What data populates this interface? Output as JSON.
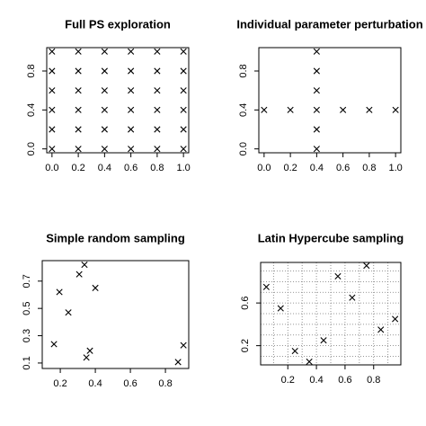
{
  "chart_data": [
    {
      "type": "scatter",
      "title": "Full PS exploration",
      "color": "#000000",
      "x": [
        0,
        0,
        0,
        0,
        0,
        0,
        0.2,
        0.2,
        0.2,
        0.2,
        0.2,
        0.2,
        0.4,
        0.4,
        0.4,
        0.4,
        0.4,
        0.4,
        0.6,
        0.6,
        0.6,
        0.6,
        0.6,
        0.6,
        0.8,
        0.8,
        0.8,
        0.8,
        0.8,
        0.8,
        1,
        1,
        1,
        1,
        1,
        1
      ],
      "values": [
        0,
        0.2,
        0.4,
        0.6,
        0.8,
        1,
        0,
        0.2,
        0.4,
        0.6,
        0.8,
        1,
        0,
        0.2,
        0.4,
        0.6,
        0.8,
        1,
        0,
        0.2,
        0.4,
        0.6,
        0.8,
        1,
        0,
        0.2,
        0.4,
        0.6,
        0.8,
        1,
        0,
        0.2,
        0.4,
        0.6,
        0.8,
        1
      ],
      "xlim": [
        -0.04,
        1.04
      ],
      "ylim": [
        -0.04,
        1.04
      ],
      "xticks": [
        {
          "value": 0,
          "label": "0.0"
        },
        0.2,
        0.4,
        0.6,
        0.8,
        {
          "value": 1,
          "label": "1.0"
        }
      ],
      "yticks": [
        {
          "value": 0,
          "label": "0.0"
        },
        0.4,
        0.8
      ]
    },
    {
      "type": "scatter",
      "title": "Individual parameter perturbation",
      "color": "#000000",
      "x": [
        0.4,
        0.4,
        0.4,
        0.4,
        0.4,
        0.4,
        0,
        0.2,
        0.6,
        0.8,
        1
      ],
      "values": [
        0,
        0.2,
        0.4,
        0.6,
        0.8,
        1,
        0.4,
        0.4,
        0.4,
        0.4,
        0.4
      ],
      "xlim": [
        -0.04,
        1.04
      ],
      "ylim": [
        -0.04,
        1.04
      ],
      "xticks": [
        {
          "value": 0,
          "label": "0.0"
        },
        0.2,
        0.4,
        0.6,
        0.8,
        {
          "value": 1,
          "label": "1.0"
        }
      ],
      "yticks": [
        {
          "value": 0,
          "label": "0.0"
        },
        0.4,
        0.8
      ]
    },
    {
      "type": "scatter",
      "title": "Simple random sampling",
      "color": "#000000",
      "x": [
        0.164,
        0.195,
        0.246,
        0.308,
        0.338,
        0.4,
        0.349,
        0.369,
        0.872,
        0.903
      ],
      "values": [
        0.238,
        0.62,
        0.47,
        0.75,
        0.82,
        0.65,
        0.14,
        0.19,
        0.107,
        0.23
      ],
      "xlim": [
        0.097,
        0.933
      ],
      "ylim": [
        0.06,
        0.85
      ],
      "xticks": [
        0.2,
        0.4,
        0.6,
        0.8
      ],
      "yticks": [
        0.1,
        0.3,
        0.5,
        0.7
      ]
    },
    {
      "type": "scatter",
      "title": "Latin Hypercube sampling",
      "color": "#000000",
      "x": [
        0.05,
        0.15,
        0.25,
        0.35,
        0.45,
        0.55,
        0.65,
        0.75,
        0.85,
        0.95
      ],
      "values": [
        0.75,
        0.55,
        0.15,
        0.05,
        0.25,
        0.85,
        0.65,
        0.95,
        0.35,
        0.45
      ],
      "xlim": [
        0.01,
        0.99
      ],
      "ylim": [
        0.02,
        0.98
      ],
      "xticks": [
        0.2,
        0.4,
        0.6,
        0.8
      ],
      "yticks": [
        0.2,
        0.6
      ],
      "grid": {
        "x": [
          0.1,
          0.2,
          0.3,
          0.4,
          0.5,
          0.6,
          0.7,
          0.8,
          0.9
        ],
        "y": [
          0.1,
          0.2,
          0.3,
          0.4,
          0.5,
          0.6,
          0.7,
          0.8,
          0.9
        ]
      }
    }
  ]
}
